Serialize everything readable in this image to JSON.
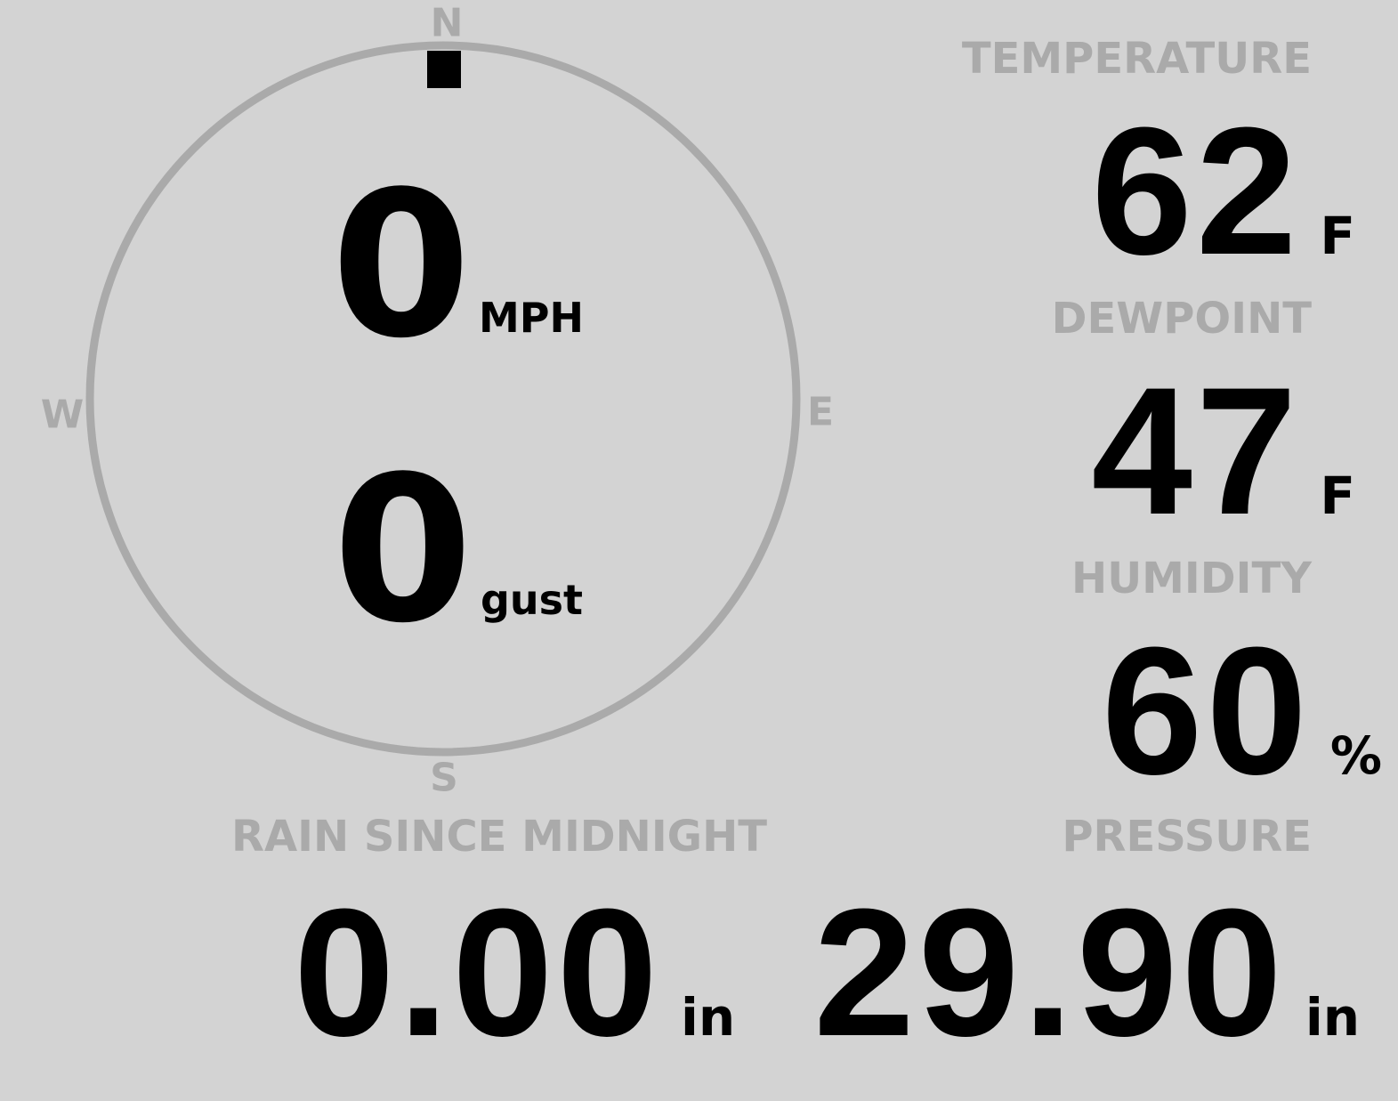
{
  "colors": {
    "background": "#d3d3d3",
    "label": "#aaaaaa",
    "value": "#000000"
  },
  "compass": {
    "north": "N",
    "east": "E",
    "south": "S",
    "west": "W",
    "wind_direction_deg": 0,
    "indicator_icon": "direction-marker-icon"
  },
  "wind": {
    "speed": "0",
    "speed_unit": "MPH",
    "gust": "0",
    "gust_unit": "gust"
  },
  "temperature": {
    "label": "TEMPERATURE",
    "value": "62",
    "unit": "F"
  },
  "dewpoint": {
    "label": "DEWPOINT",
    "value": "47",
    "unit": "F"
  },
  "humidity": {
    "label": "HUMIDITY",
    "value": "60",
    "unit": "%"
  },
  "pressure": {
    "label": "PRESSURE",
    "value": "29.90",
    "unit": "in"
  },
  "rain": {
    "label": "RAIN SINCE MIDNIGHT",
    "value": "0.00",
    "unit": "in"
  }
}
